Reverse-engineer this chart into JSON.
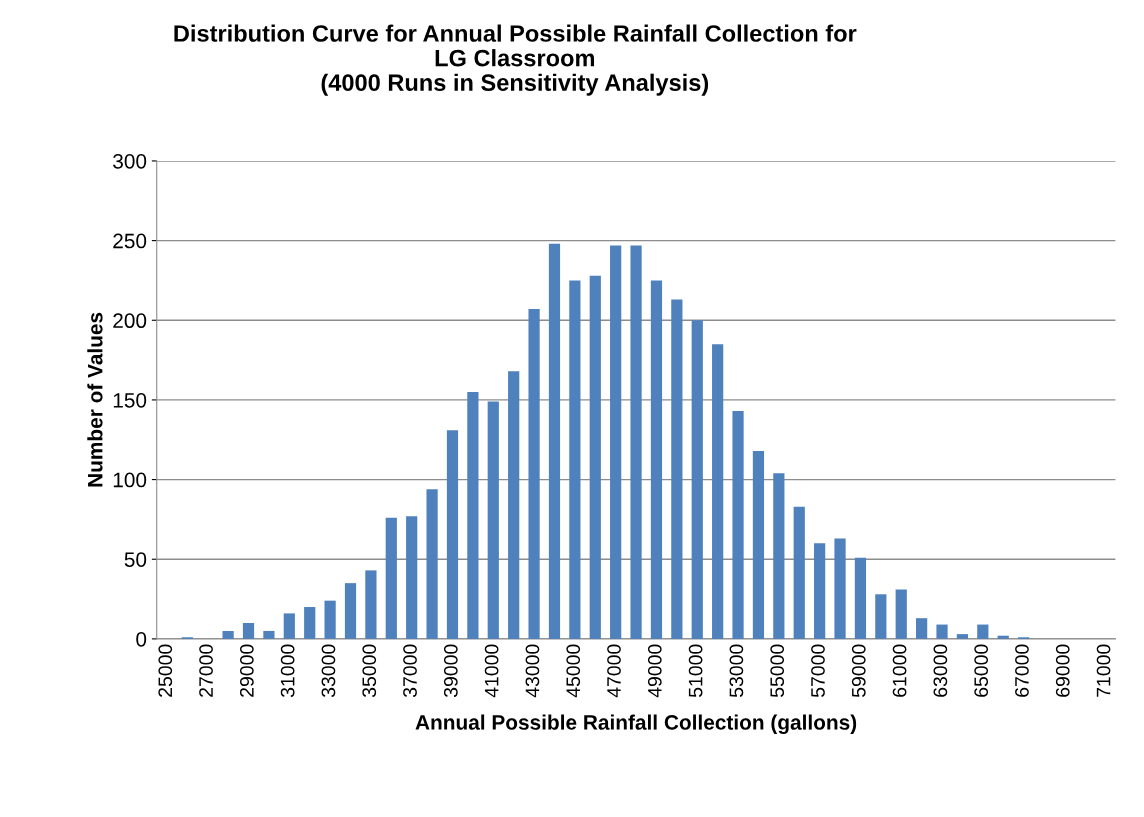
{
  "chart_data": {
    "type": "bar",
    "title": "Distribution Curve for Annual Possible Rainfall Collection for\nLG Classroom\n(4000 Runs in Sensitivity Analysis)",
    "xlabel": "Annual Possible Rainfall Collection (gallons)",
    "ylabel": "Number of Values",
    "categories": [
      "25000",
      null,
      "27000",
      null,
      "29000",
      null,
      "31000",
      null,
      "33000",
      null,
      "35000",
      null,
      "37000",
      null,
      "39000",
      null,
      "41000",
      null,
      "43000",
      null,
      "45000",
      null,
      "47000",
      null,
      "49000",
      null,
      "51000",
      null,
      "53000",
      null,
      "55000",
      null,
      "57000",
      null,
      "59000",
      null,
      "61000",
      null,
      "63000",
      null,
      "65000",
      null,
      "67000",
      null,
      "69000",
      null,
      "71000"
    ],
    "values": [
      0,
      1,
      0,
      5,
      10,
      5,
      16,
      20,
      24,
      35,
      43,
      76,
      77,
      94,
      131,
      155,
      149,
      168,
      207,
      248,
      225,
      228,
      247,
      247,
      225,
      213,
      200,
      185,
      143,
      118,
      104,
      83,
      60,
      63,
      51,
      28,
      31,
      13,
      9,
      3,
      9,
      2,
      1,
      0,
      0,
      0,
      0
    ],
    "color": "#4f81bd",
    "ylim": [
      0,
      300
    ],
    "yticks": [
      0,
      50,
      100,
      150,
      200,
      250,
      300
    ],
    "grid": "y",
    "legend": false
  }
}
